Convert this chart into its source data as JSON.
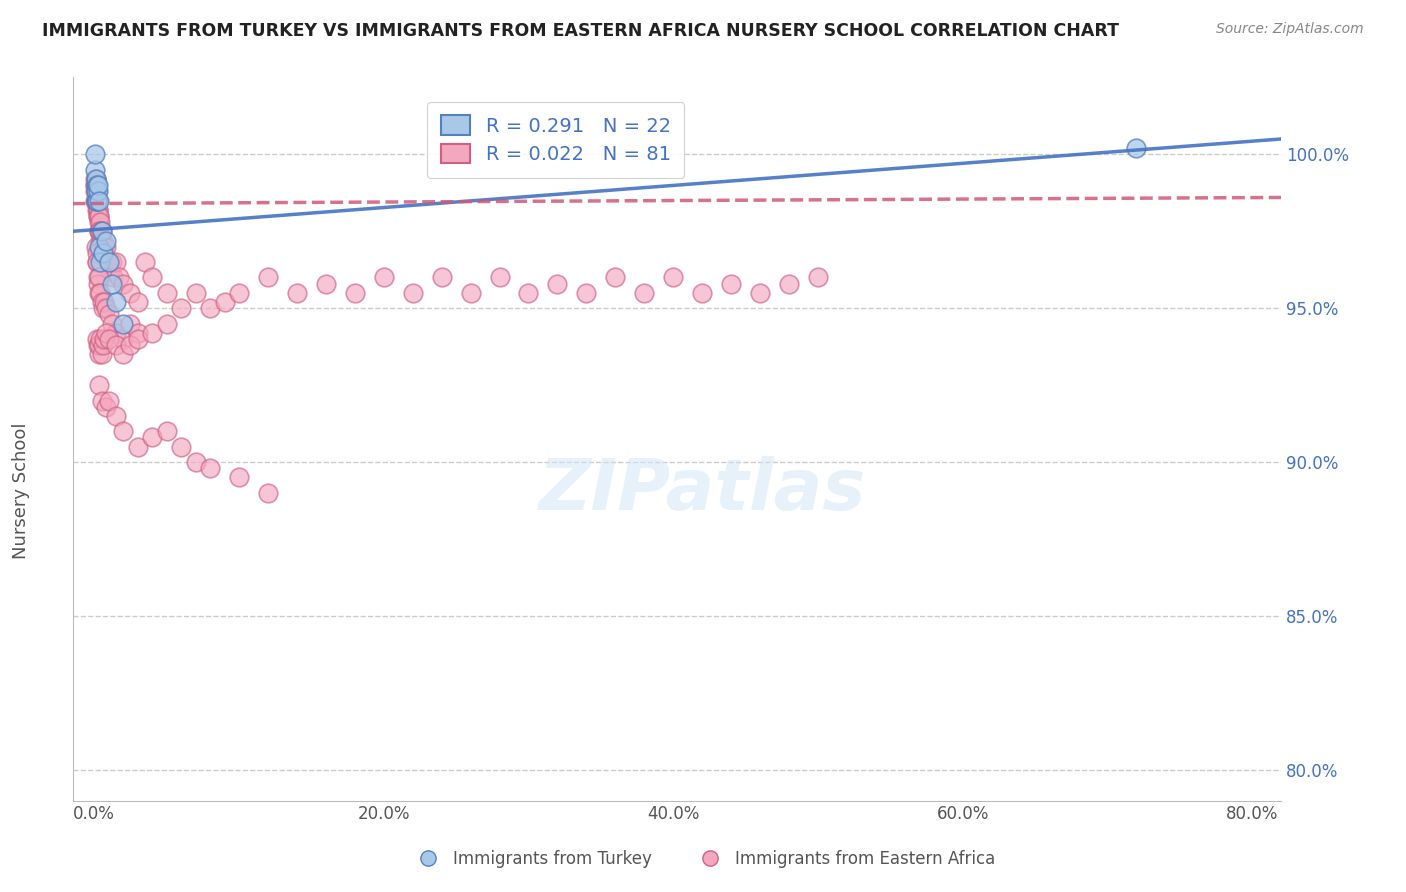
{
  "title": "IMMIGRANTS FROM TURKEY VS IMMIGRANTS FROM EASTERN AFRICA NURSERY SCHOOL CORRELATION CHART",
  "source": "Source: ZipAtlas.com",
  "xlabel_vals": [
    0.0,
    20.0,
    40.0,
    60.0,
    80.0
  ],
  "ylabel": "Nursery School",
  "ylabel_vals": [
    80.0,
    85.0,
    90.0,
    95.0,
    100.0
  ],
  "xlim": [
    -1.5,
    82
  ],
  "ylim": [
    79,
    102.5
  ],
  "turkey_R": 0.291,
  "turkey_N": 22,
  "eastern_africa_R": 0.022,
  "eastern_africa_N": 81,
  "turkey_color": "#a8c8e8",
  "eastern_africa_color": "#f4a8c0",
  "turkey_edge_color": "#5580c0",
  "eastern_africa_edge_color": "#d06080",
  "turkey_line_color": "#4472c4",
  "eastern_africa_line_color": "#d05878",
  "background_color": "#ffffff",
  "grid_color": "#cccccc",
  "turkey_scatter_x": [
    0.05,
    0.08,
    0.1,
    0.12,
    0.14,
    0.15,
    0.18,
    0.2,
    0.22,
    0.25,
    0.28,
    0.3,
    0.35,
    0.4,
    0.5,
    0.6,
    0.8,
    1.0,
    1.2,
    1.5,
    2.0,
    72.0
  ],
  "turkey_scatter_y": [
    99.5,
    100.0,
    98.5,
    99.0,
    98.8,
    99.2,
    98.5,
    99.0,
    98.5,
    98.8,
    99.0,
    98.5,
    97.0,
    96.5,
    97.5,
    96.8,
    97.2,
    96.5,
    95.8,
    95.2,
    94.5,
    100.2
  ],
  "eastern_africa_scatter_x": [
    0.03,
    0.05,
    0.06,
    0.07,
    0.08,
    0.09,
    0.1,
    0.11,
    0.12,
    0.13,
    0.14,
    0.15,
    0.15,
    0.16,
    0.17,
    0.18,
    0.19,
    0.2,
    0.21,
    0.22,
    0.23,
    0.24,
    0.25,
    0.26,
    0.27,
    0.28,
    0.29,
    0.3,
    0.32,
    0.34,
    0.35,
    0.36,
    0.38,
    0.4,
    0.42,
    0.45,
    0.48,
    0.5,
    0.55,
    0.6,
    0.65,
    0.7,
    0.8,
    0.9,
    1.0,
    1.1,
    1.2,
    1.3,
    1.5,
    1.7,
    2.0,
    2.5,
    3.0,
    3.5,
    4.0,
    5.0,
    6.0,
    7.0,
    8.0,
    9.0,
    10.0,
    12.0,
    14.0,
    16.0,
    18.0,
    20.0,
    22.0,
    24.0,
    26.0,
    28.0,
    30.0,
    32.0,
    34.0,
    36.0,
    38.0,
    40.0,
    42.0,
    44.0,
    46.0,
    48.0,
    50.0
  ],
  "eastern_africa_scatter_y": [
    99.0,
    98.5,
    99.2,
    98.8,
    99.0,
    98.5,
    99.2,
    98.8,
    99.0,
    98.5,
    99.0,
    98.5,
    99.2,
    98.8,
    98.5,
    99.0,
    98.5,
    98.8,
    98.5,
    98.2,
    98.5,
    98.0,
    98.2,
    98.5,
    98.0,
    98.2,
    97.8,
    98.0,
    97.5,
    98.0,
    97.5,
    97.8,
    97.5,
    97.2,
    97.5,
    97.0,
    97.2,
    97.5,
    97.0,
    97.2,
    97.0,
    96.8,
    97.0,
    96.5,
    96.5,
    96.2,
    96.5,
    96.0,
    96.5,
    96.0,
    95.8,
    95.5,
    95.2,
    96.5,
    96.0,
    95.5,
    95.0,
    95.5,
    95.0,
    95.2,
    95.5,
    96.0,
    95.5,
    95.8,
    95.5,
    96.0,
    95.5,
    96.0,
    95.5,
    96.0,
    95.5,
    95.8,
    95.5,
    96.0,
    95.5,
    96.0,
    95.5,
    95.8,
    95.5,
    95.8,
    96.0
  ],
  "ea_extra_x": [
    0.15,
    0.18,
    0.2,
    0.22,
    0.25,
    0.28,
    0.3,
    0.35,
    0.4,
    0.5,
    0.6,
    0.7,
    0.8,
    1.0,
    1.2,
    1.5,
    2.0,
    2.5,
    3.0
  ],
  "ea_extra_y": [
    97.0,
    96.5,
    96.8,
    96.5,
    96.0,
    95.8,
    96.0,
    95.5,
    95.5,
    95.2,
    95.0,
    95.2,
    95.0,
    94.8,
    94.5,
    94.2,
    94.0,
    94.5,
    94.2
  ],
  "ea_low_x": [
    0.2,
    0.25,
    0.3,
    0.35,
    0.4,
    0.5,
    0.6,
    0.7,
    0.8,
    1.0,
    1.5,
    2.0,
    2.5,
    3.0,
    4.0,
    5.0
  ],
  "ea_low_y": [
    94.0,
    93.8,
    93.5,
    93.8,
    94.0,
    93.5,
    93.8,
    94.0,
    94.2,
    94.0,
    93.8,
    93.5,
    93.8,
    94.0,
    94.2,
    94.5
  ],
  "ea_very_low_x": [
    0.3,
    0.5,
    0.8,
    1.0,
    1.5,
    2.0,
    3.0,
    4.0,
    5.0,
    6.0,
    7.0,
    8.0,
    10.0,
    12.0
  ],
  "ea_very_low_y": [
    92.5,
    92.0,
    91.8,
    92.0,
    91.5,
    91.0,
    90.5,
    90.8,
    91.0,
    90.5,
    90.0,
    89.8,
    89.5,
    89.0
  ],
  "turkey_line_x0": -1.5,
  "turkey_line_y0": 97.5,
  "turkey_line_x1": 82.0,
  "turkey_line_y1": 100.5,
  "ea_line_x0": -1.5,
  "ea_line_y0": 98.4,
  "ea_line_x1": 82.0,
  "ea_line_y1": 98.6
}
